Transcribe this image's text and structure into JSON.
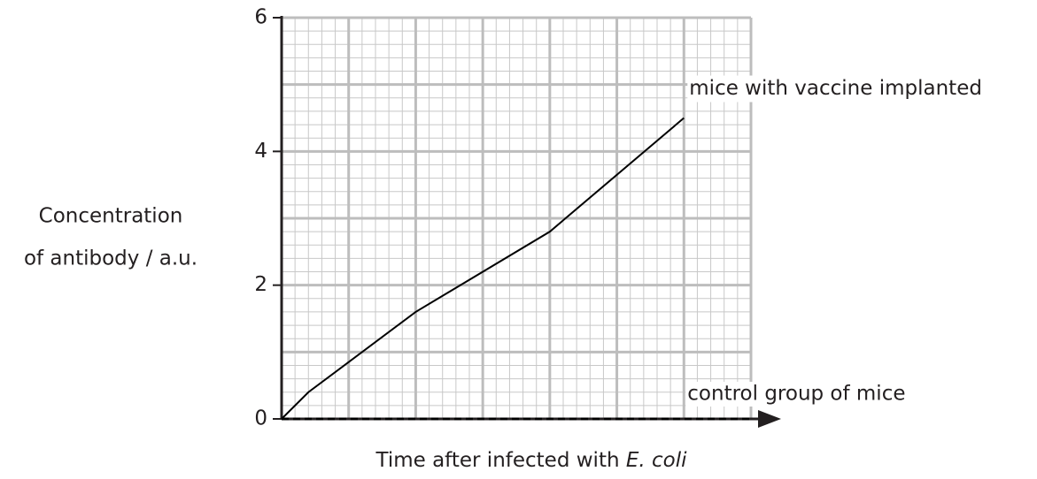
{
  "chart_data": {
    "type": "line",
    "ylabel": [
      "Concentration",
      "of antibody / a.u."
    ],
    "xlabel": [
      "Time after infected with ",
      "E. coli"
    ],
    "xlim": [
      0,
      7
    ],
    "ylim": [
      0,
      6
    ],
    "yticks": [
      0,
      2,
      4,
      6
    ],
    "grid": {
      "major": 1,
      "minor": 0.2
    },
    "series": [
      {
        "name": "mice with vaccine implanted",
        "color": "#000000",
        "style": "solid",
        "x": [
          0,
          0.4,
          2,
          4,
          6
        ],
        "values": [
          0,
          0.4,
          1.6,
          2.8,
          4.5
        ]
      },
      {
        "name": "control group of mice",
        "color": "#000000",
        "style": "dashed",
        "x": [
          0,
          7
        ],
        "values": [
          0,
          0
        ]
      }
    ]
  }
}
